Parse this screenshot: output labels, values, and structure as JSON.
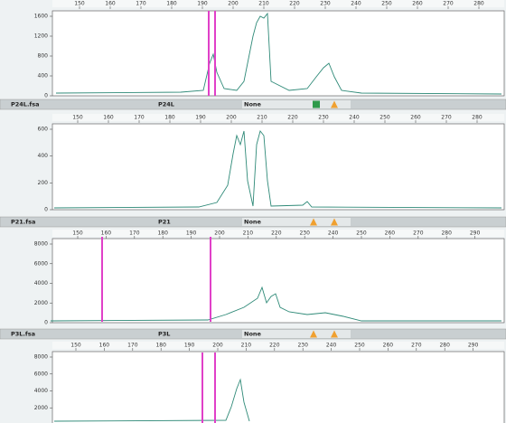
{
  "panels": [
    {
      "x_labels": [
        "150",
        "160",
        "170",
        "180",
        "190",
        "200",
        "210",
        "220",
        "230",
        "240",
        "250",
        "260",
        "270",
        "280"
      ],
      "y_labels": [
        "1600",
        "1200",
        "800",
        "400",
        "0"
      ],
      "file": "P24L.fsa",
      "sample": "P24L",
      "status": "None"
    },
    {
      "x_labels": [
        "150",
        "160",
        "170",
        "180",
        "190",
        "200",
        "210",
        "220",
        "230",
        "240",
        "250",
        "260",
        "270",
        "280"
      ],
      "y_labels": [
        "600",
        "400",
        "200",
        "0"
      ],
      "file": "P21.fsa",
      "sample": "P21",
      "status": "None"
    },
    {
      "x_labels": [
        "150",
        "160",
        "170",
        "180",
        "190",
        "200",
        "210",
        "220",
        "230",
        "240",
        "250",
        "260",
        "270",
        "280",
        "290"
      ],
      "y_labels": [
        "8000",
        "6000",
        "4000",
        "2000",
        "0"
      ],
      "file": "P3L.fsa",
      "sample": "P3L",
      "status": "None"
    },
    {
      "x_labels": [
        "150",
        "160",
        "170",
        "180",
        "190",
        "200",
        "210",
        "220",
        "230",
        "240",
        "250",
        "260",
        "270",
        "280",
        "290"
      ],
      "y_labels": [
        "8000",
        "6000",
        "4000",
        "2000"
      ]
    }
  ]
}
